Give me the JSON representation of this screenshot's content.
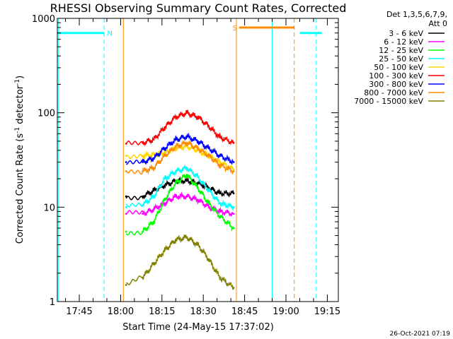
{
  "chart_data": {
    "type": "line",
    "title": "RHESSI Observing Summary Count Rates, Corrected",
    "xlabel": "Start Time (24-May-15 17:37:02)",
    "ylabel_main": "Corrected Count Rate (s",
    "ylabel_sup1": "-1",
    "ylabel_mid": " detector",
    "ylabel_sup2": "-1",
    "ylabel_end": ")",
    "yscale": "log",
    "ylim": [
      1,
      1000
    ],
    "xlim": [
      "17:37:02",
      "19:19:00"
    ],
    "x_ticks": [
      "17:45",
      "18:00",
      "18:15",
      "18:30",
      "18:45",
      "19:00",
      "19:15"
    ],
    "y_ticks": [
      "1",
      "10",
      "100",
      "1000"
    ],
    "timestamp": "26-Oct-2021 07:19",
    "legend": {
      "header1": "Det 1,3,5,6,7,9,",
      "header2": "Att 0",
      "placement": "right"
    },
    "series": [
      {
        "name": "3 - 6 keV",
        "color": "#000000",
        "x": [
          "18:02",
          "18:08",
          "18:12",
          "18:16",
          "18:20",
          "18:24",
          "18:28",
          "18:32",
          "18:36",
          "18:41"
        ],
        "values": [
          13,
          13,
          15,
          17,
          19,
          19,
          18,
          16,
          14,
          14
        ]
      },
      {
        "name": "6 - 12 keV",
        "color": "#ff00ff",
        "x": [
          "18:02",
          "18:08",
          "18:12",
          "18:16",
          "18:20",
          "18:24",
          "18:28",
          "18:32",
          "18:36",
          "18:41"
        ],
        "values": [
          8.5,
          8.5,
          9.5,
          11,
          13,
          13,
          12,
          10,
          9,
          8.5
        ]
      },
      {
        "name": "12 - 25 keV",
        "color": "#00ff00",
        "x": [
          "18:02",
          "18:08",
          "18:12",
          "18:16",
          "18:20",
          "18:24",
          "18:28",
          "18:32",
          "18:36",
          "18:41"
        ],
        "values": [
          5.5,
          5.5,
          7,
          12,
          18,
          22,
          16,
          11,
          8,
          6
        ]
      },
      {
        "name": "25 - 50 keV",
        "color": "#00ffff",
        "x": [
          "18:02",
          "18:08",
          "18:12",
          "18:16",
          "18:20",
          "18:24",
          "18:28",
          "18:32",
          "18:36",
          "18:41"
        ],
        "values": [
          10,
          10.5,
          13,
          20,
          24,
          26,
          21,
          15,
          11,
          10
        ]
      },
      {
        "name": "50 - 100 keV",
        "color": "#ffd700",
        "x": [
          "18:02",
          "18:08",
          "18:12",
          "18:16",
          "18:20",
          "18:24",
          "18:28",
          "18:32",
          "18:36",
          "18:41"
        ],
        "values": [
          35,
          35,
          36,
          38,
          42,
          44,
          40,
          35,
          30,
          25
        ]
      },
      {
        "name": "100 - 300 keV",
        "color": "#ff0000",
        "x": [
          "18:02",
          "18:08",
          "18:12",
          "18:16",
          "18:20",
          "18:24",
          "18:28",
          "18:32",
          "18:36",
          "18:41"
        ],
        "values": [
          47,
          48,
          52,
          70,
          90,
          100,
          90,
          72,
          55,
          48
        ]
      },
      {
        "name": "300 - 800 keV",
        "color": "#0000ff",
        "x": [
          "18:02",
          "18:08",
          "18:12",
          "18:16",
          "18:20",
          "18:24",
          "18:28",
          "18:32",
          "18:36",
          "18:41"
        ],
        "values": [
          30,
          30,
          33,
          42,
          52,
          56,
          50,
          42,
          35,
          30
        ]
      },
      {
        "name": "800 - 7000 keV",
        "color": "#ff8c00",
        "x": [
          "18:02",
          "18:08",
          "18:12",
          "18:16",
          "18:20",
          "18:24",
          "18:28",
          "18:32",
          "18:36",
          "18:41"
        ],
        "values": [
          24,
          24,
          26,
          35,
          44,
          48,
          42,
          35,
          28,
          24
        ]
      },
      {
        "name": "7000 - 15000 keV",
        "color": "#808000",
        "x": [
          "18:02",
          "18:08",
          "18:12",
          "18:16",
          "18:20",
          "18:24",
          "18:28",
          "18:32",
          "18:36",
          "18:41"
        ],
        "values": [
          1.5,
          1.8,
          2.5,
          3.5,
          4.5,
          4.8,
          4,
          2.8,
          1.8,
          1.4
        ]
      }
    ],
    "flags": {
      "night": [
        {
          "start": "17:37:02",
          "end": "17:54:00",
          "level": 700,
          "label": "N",
          "color": "#00ffff"
        },
        {
          "start": "19:05:00",
          "end": "19:13:00",
          "level": 700,
          "color": "#00ffff"
        }
      ],
      "saa": [
        {
          "start": "18:43:00",
          "end": "19:03:00",
          "level": 800,
          "label": "S",
          "color": "#ff8c00"
        }
      ]
    },
    "markers": [
      {
        "x": "17:37:30",
        "color": "#00ffff",
        "style": "solid"
      },
      {
        "x": "17:54:00",
        "color": "#00ffff",
        "style": "dashed"
      },
      {
        "x": "18:01:00",
        "color": "#ff8c00",
        "style": "solid"
      },
      {
        "x": "18:42:00",
        "color": "#ff8c00",
        "style": "solid"
      },
      {
        "x": "18:55:00",
        "color": "#00ffff",
        "style": "solid"
      },
      {
        "x": "19:03:00",
        "color": "#ff8c00",
        "style": "dashed"
      },
      {
        "x": "19:11:00",
        "color": "#00ffff",
        "style": "dashed"
      }
    ]
  }
}
